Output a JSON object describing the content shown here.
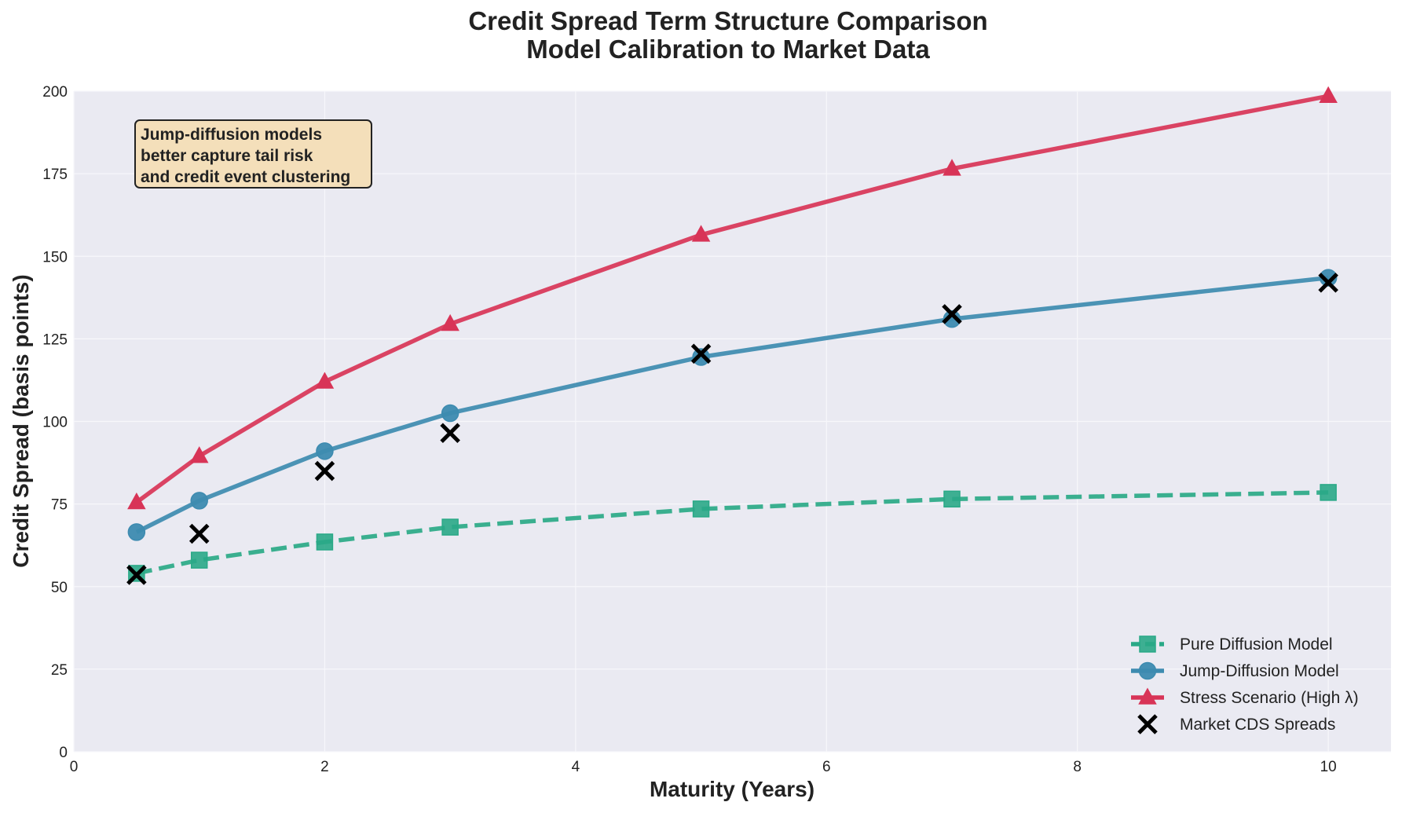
{
  "colors": {
    "background": "#ffffff",
    "plot_background": "#eaeaf2",
    "grid": "#f7f7fb",
    "text": "#222222",
    "annotation_fill": "#f4dfba"
  },
  "chart_data": {
    "type": "line",
    "title": [
      "Credit Spread Term Structure Comparison",
      "Model Calibration to Market Data"
    ],
    "xlabel": "Maturity (Years)",
    "ylabel": "Credit Spread (basis points)",
    "xlim": [
      0,
      10.5
    ],
    "ylim": [
      0,
      200
    ],
    "x_ticks": [
      0,
      2,
      4,
      6,
      8,
      10
    ],
    "y_ticks": [
      0,
      25,
      50,
      75,
      100,
      125,
      150,
      175,
      200
    ],
    "x_tick_labels": [
      "0",
      "2",
      "4",
      "6",
      "8",
      "10"
    ],
    "y_tick_labels": [
      "0",
      "25",
      "50",
      "75",
      "100",
      "125",
      "150",
      "175",
      "200"
    ],
    "x": [
      0.5,
      1,
      2,
      3,
      5,
      7,
      10
    ],
    "grid": true,
    "legend_position": "lower-right",
    "series": [
      {
        "name": "Pure Diffusion Model",
        "values": [
          54,
          58,
          63.5,
          68,
          73.5,
          76.5,
          78.5
        ],
        "color": "#2aa987",
        "marker": "square",
        "line_style": "dashed"
      },
      {
        "name": "Jump-Diffusion Model",
        "values": [
          66.5,
          76,
          91,
          102.5,
          119.5,
          131,
          143.5
        ],
        "color": "#3d8bb0",
        "marker": "circle",
        "line_style": "solid"
      },
      {
        "name": "Stress Scenario (High λ)",
        "values": [
          75.5,
          89.5,
          112,
          129.5,
          156.5,
          176.5,
          198.5
        ],
        "color": "#d83457",
        "marker": "triangle",
        "line_style": "solid"
      },
      {
        "name": "Market CDS Spreads",
        "values": [
          53.5,
          66,
          85,
          96.5,
          120.5,
          132.5,
          142
        ],
        "color": "#000000",
        "marker": "x",
        "line_style": "none"
      }
    ],
    "annotation": "Jump-diffusion models\nbetter capture tail risk\nand credit event clustering"
  }
}
